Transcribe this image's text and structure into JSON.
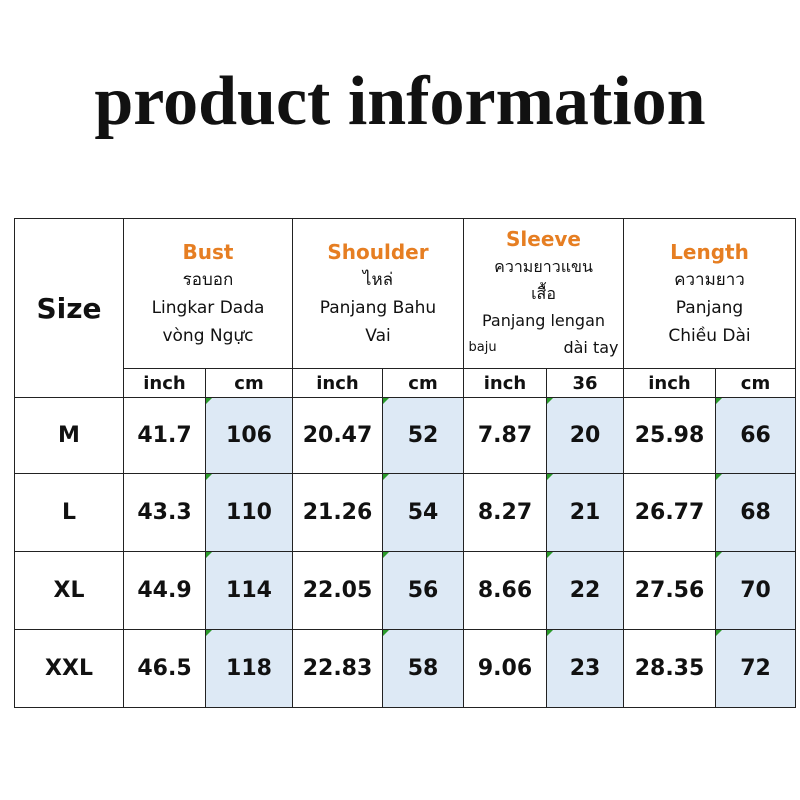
{
  "title": "product information",
  "table": {
    "size_header": "Size",
    "headers": [
      {
        "title": "Bust",
        "lines": [
          "รอบอก",
          "Lingkar Dada",
          "vòng Ngực"
        ],
        "units": [
          "inch",
          "cm"
        ]
      },
      {
        "title": "Shoulder",
        "lines": [
          "ไหล่",
          "Panjang Bahu",
          "Vai"
        ],
        "units": [
          "inch",
          "cm"
        ]
      },
      {
        "title": "Sleeve",
        "lines": [
          "ความยาวแขน",
          "เสื้อ",
          "Panjang lengan"
        ],
        "split_line": [
          "baju",
          "dài tay"
        ],
        "units": [
          "inch",
          "36"
        ]
      },
      {
        "title": "Length",
        "lines": [
          "ความยาว",
          "Panjang",
          "Chiều Dài"
        ],
        "units": [
          "inch",
          "cm"
        ]
      }
    ],
    "rows": [
      [
        "M",
        41.7,
        106,
        20.47,
        52,
        7.87,
        20,
        25.98,
        66
      ],
      [
        "L",
        43.3,
        110,
        21.26,
        54,
        8.27,
        21,
        26.77,
        68
      ],
      [
        "XL",
        44.9,
        114,
        22.05,
        56,
        8.66,
        22,
        27.56,
        70
      ],
      [
        "XXL",
        46.5,
        118,
        22.83,
        58,
        9.06,
        23,
        28.35,
        72
      ]
    ]
  }
}
